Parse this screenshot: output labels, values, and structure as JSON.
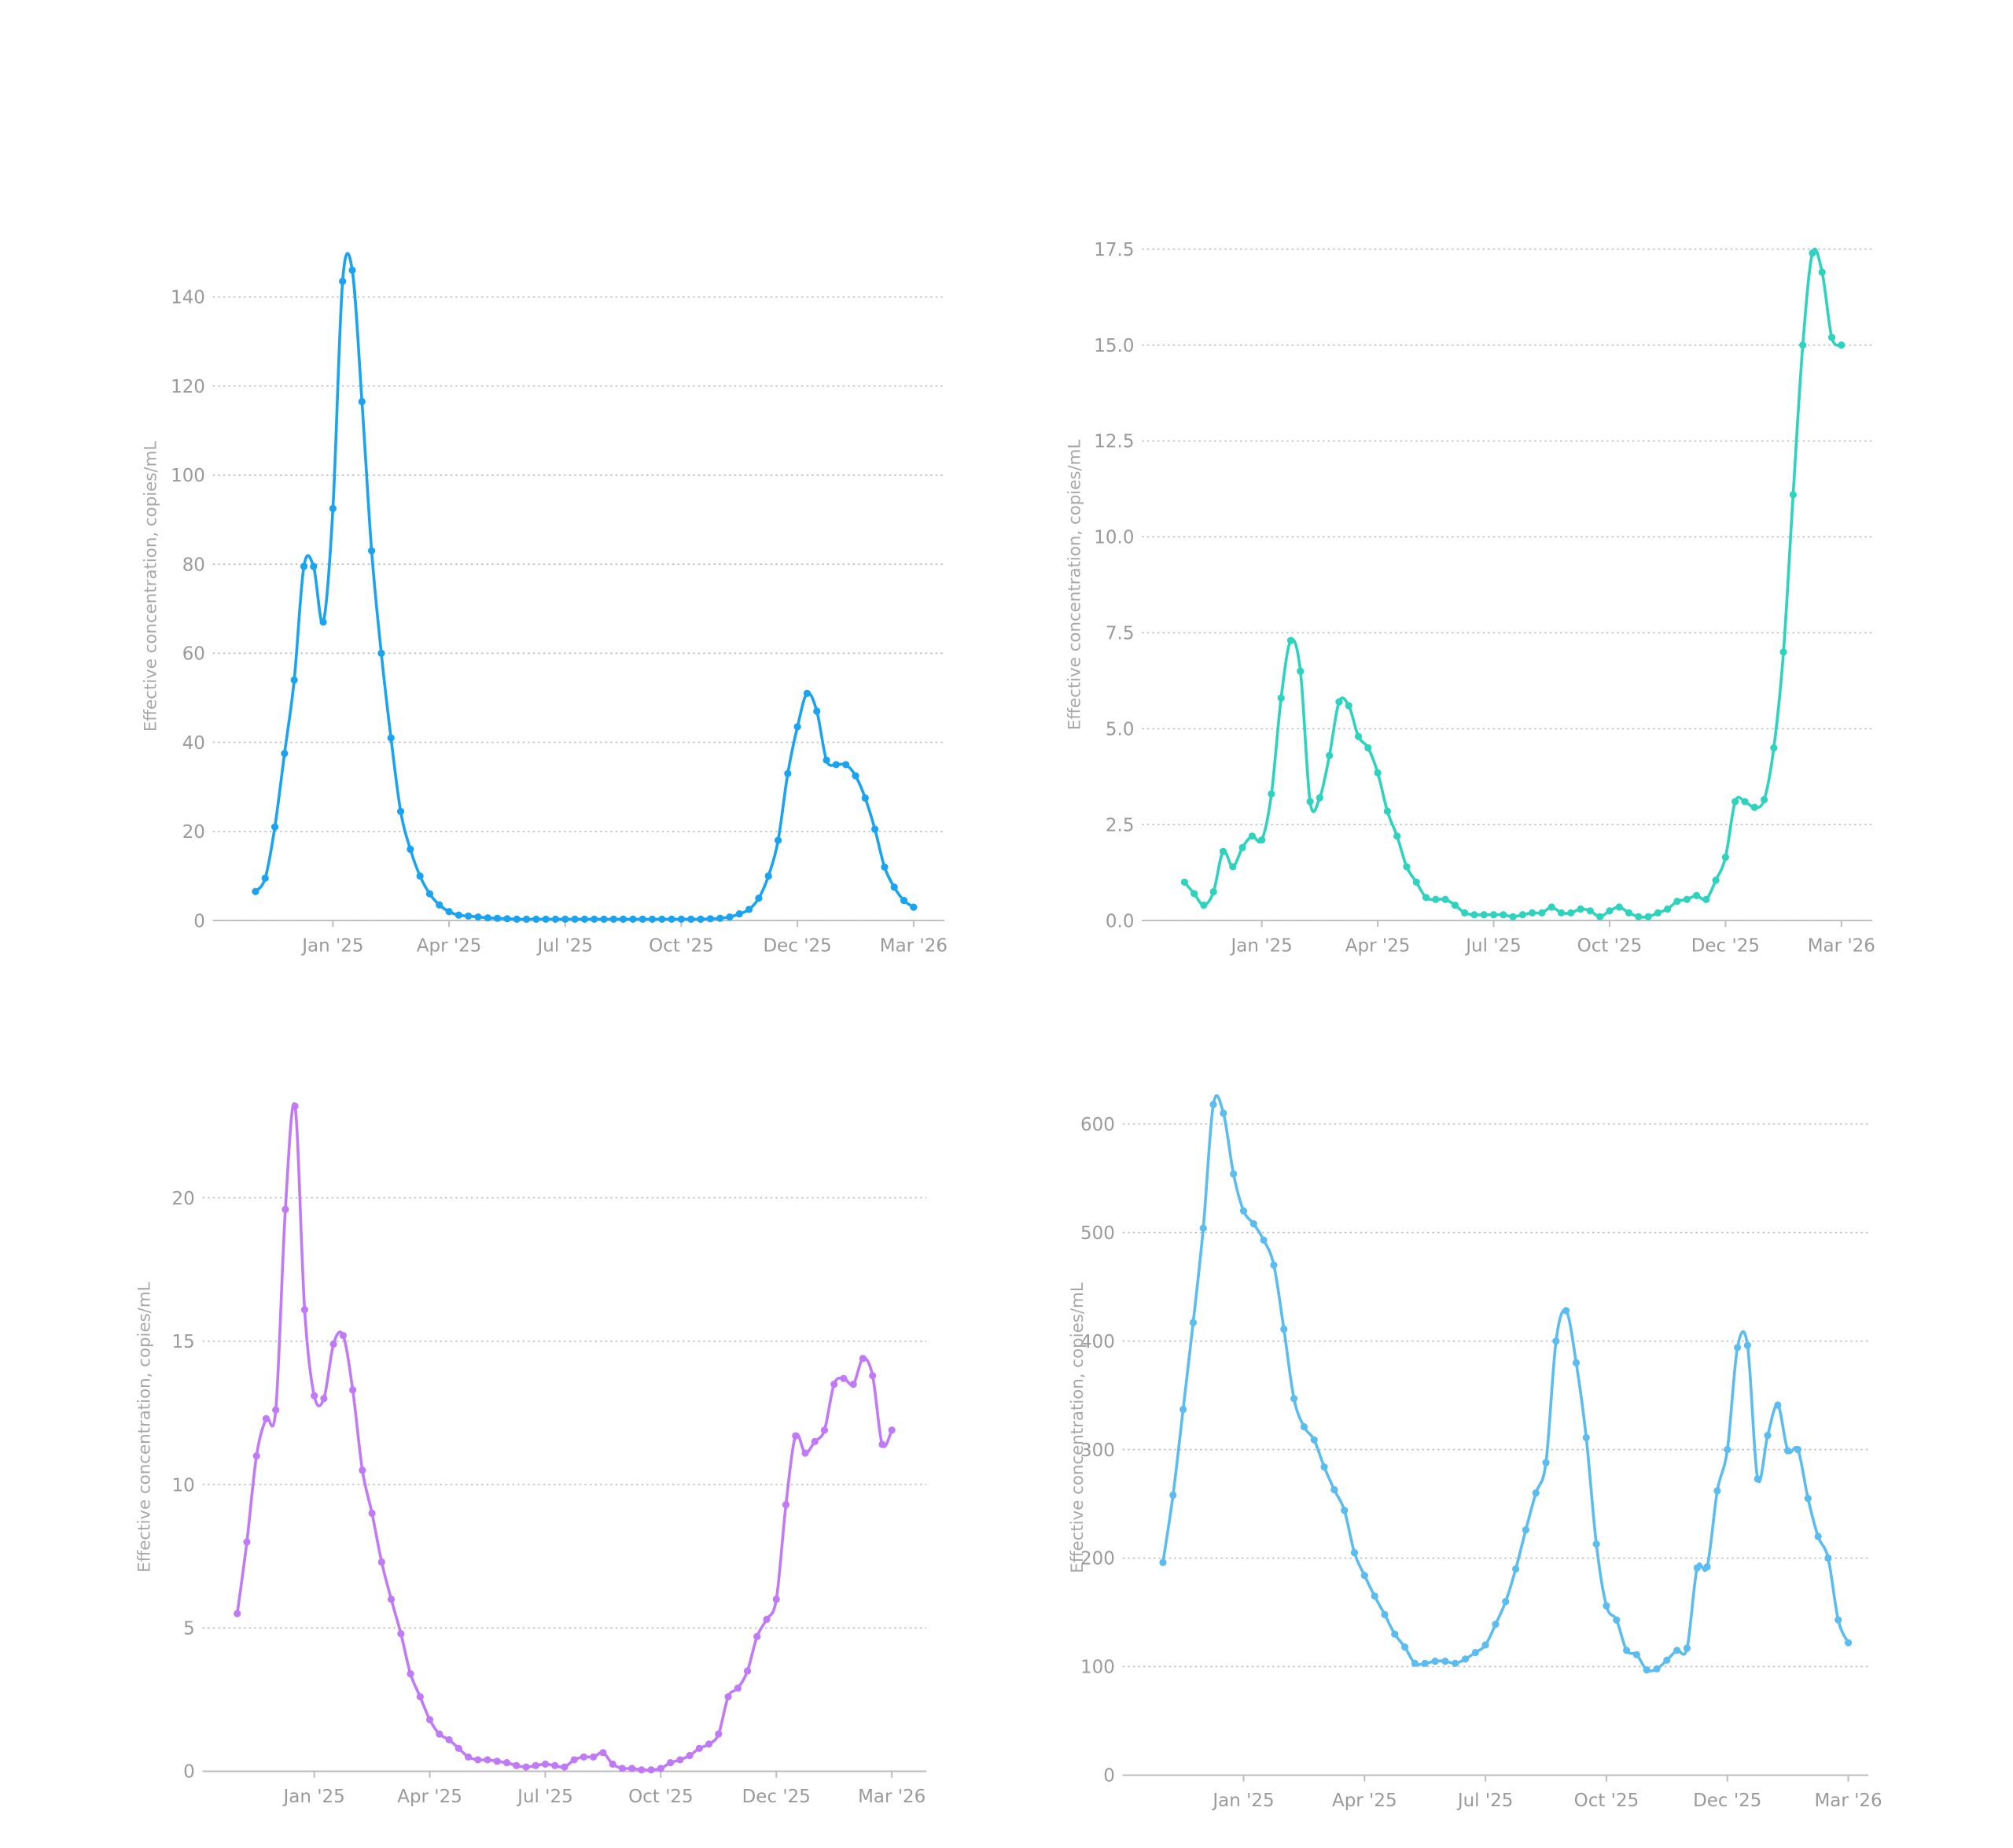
{
  "chart_data": [
    {
      "type": "line",
      "y_label": "Effective concentration, copies/mL",
      "color": "#1aa3f0",
      "x": [
        -2,
        -1.75,
        -1.5,
        -1.25,
        -1,
        -0.75,
        -0.5,
        -0.25,
        0,
        0.25,
        0.5,
        0.75,
        1,
        1.25,
        1.5,
        1.75,
        2,
        2.25,
        2.5,
        2.75,
        3,
        3.25,
        3.5,
        3.75,
        4,
        4.25,
        4.5,
        4.75,
        5,
        5.25,
        5.5,
        5.75,
        6,
        6.25,
        6.5,
        6.75,
        7,
        7.25,
        7.5,
        7.75,
        8,
        8.25,
        8.5,
        8.75,
        9,
        9.25,
        9.5,
        9.75,
        10,
        10.25,
        10.5,
        10.75,
        11,
        11.25,
        11.5,
        11.75,
        12,
        12.25,
        12.5,
        12.75,
        13,
        13.25,
        13.5,
        13.75,
        14,
        14.25,
        14.5,
        14.75,
        15
      ],
      "values": [
        6.5,
        9.5,
        21,
        37.5,
        54,
        79.5,
        79.5,
        67,
        92.5,
        143.5,
        146,
        116.5,
        83,
        60,
        41,
        24.5,
        16,
        10,
        6,
        3.5,
        2,
        1.2,
        1,
        0.8,
        0.6,
        0.5,
        0.4,
        0.3,
        0.3,
        0.3,
        0.3,
        0.3,
        0.3,
        0.3,
        0.3,
        0.3,
        0.3,
        0.3,
        0.3,
        0.3,
        0.3,
        0.3,
        0.3,
        0.3,
        0.3,
        0.3,
        0.3,
        0.4,
        0.5,
        0.8,
        1.5,
        2.5,
        5,
        10,
        18,
        33,
        43.5,
        51,
        47,
        36,
        35,
        35,
        32.5,
        27.5,
        20.5,
        12,
        7.5,
        4.5,
        3
      ],
      "xlim": [
        -3.1,
        15.8
      ],
      "ylim": [
        0,
        150
      ],
      "yticks": [
        0,
        20,
        40,
        60,
        80,
        100,
        120,
        140
      ],
      "xticks": [
        {
          "value": 0,
          "label": "Jan '25"
        },
        {
          "value": 3,
          "label": "Apr '25"
        },
        {
          "value": 6,
          "label": "Jul '25"
        },
        {
          "value": 9,
          "label": "Oct '25"
        },
        {
          "value": 12,
          "label": "Dec '25"
        },
        {
          "value": 15,
          "label": "Mar '26"
        }
      ],
      "grid": true
    },
    {
      "type": "line",
      "y_label": "Effective concentration, copies/mL",
      "color": "#2ed3bd",
      "x": [
        -2,
        -1.75,
        -1.5,
        -1.25,
        -1,
        -0.75,
        -0.5,
        -0.25,
        0,
        0.25,
        0.5,
        0.75,
        1,
        1.25,
        1.5,
        1.75,
        2,
        2.25,
        2.5,
        2.75,
        3,
        3.25,
        3.5,
        3.75,
        4,
        4.25,
        4.5,
        4.75,
        5,
        5.25,
        5.5,
        5.75,
        6,
        6.25,
        6.5,
        6.75,
        7,
        7.25,
        7.5,
        7.75,
        8,
        8.25,
        8.5,
        8.75,
        9,
        9.25,
        9.5,
        9.75,
        10,
        10.25,
        10.5,
        10.75,
        11,
        11.25,
        11.5,
        11.75,
        12,
        12.25,
        12.5,
        12.75,
        13,
        13.25,
        13.5,
        13.75,
        14,
        14.25,
        14.5,
        14.75,
        15
      ],
      "values": [
        1.0,
        0.7,
        0.4,
        0.75,
        1.8,
        1.4,
        1.9,
        2.2,
        2.1,
        3.3,
        5.8,
        7.3,
        6.5,
        3.1,
        3.2,
        4.3,
        5.7,
        5.6,
        4.8,
        4.5,
        3.85,
        2.85,
        2.2,
        1.4,
        1.0,
        0.6,
        0.55,
        0.55,
        0.4,
        0.2,
        0.15,
        0.15,
        0.15,
        0.15,
        0.1,
        0.15,
        0.2,
        0.2,
        0.35,
        0.2,
        0.2,
        0.3,
        0.25,
        0.1,
        0.25,
        0.35,
        0.2,
        0.1,
        0.1,
        0.2,
        0.3,
        0.5,
        0.55,
        0.65,
        0.55,
        1.05,
        1.65,
        3.1,
        3.1,
        2.95,
        3.15,
        4.5,
        7.0,
        11.1,
        15.0,
        17.4,
        16.9,
        15.2,
        15.0
      ],
      "xlim": [
        -3.1,
        15.8
      ],
      "ylim": [
        0,
        17.5
      ],
      "yticks": [
        {
          "value": 0,
          "label": "0.0"
        },
        2.5,
        {
          "value": 5,
          "label": "5.0"
        },
        7.5,
        {
          "value": 10,
          "label": "10.0"
        },
        12.5,
        {
          "value": 15,
          "label": "15.0"
        },
        17.5
      ],
      "xticks": [
        {
          "value": 0,
          "label": "Jan '25"
        },
        {
          "value": 3,
          "label": "Apr '25"
        },
        {
          "value": 6,
          "label": "Jul '25"
        },
        {
          "value": 9,
          "label": "Oct '25"
        },
        {
          "value": 12,
          "label": "Dec '25"
        },
        {
          "value": 15,
          "label": "Mar '26"
        }
      ],
      "grid": true
    },
    {
      "type": "line",
      "y_label": "Effective concentration, copies/mL",
      "color": "#c07af7",
      "x": [
        -2,
        -1.75,
        -1.5,
        -1.25,
        -1,
        -0.75,
        -0.5,
        -0.25,
        0,
        0.25,
        0.5,
        0.75,
        1,
        1.25,
        1.5,
        1.75,
        2,
        2.25,
        2.5,
        2.75,
        3,
        3.25,
        3.5,
        3.75,
        4,
        4.25,
        4.5,
        4.75,
        5,
        5.25,
        5.5,
        5.75,
        6,
        6.25,
        6.5,
        6.75,
        7,
        7.25,
        7.5,
        7.75,
        8,
        8.25,
        8.5,
        8.75,
        9,
        9.25,
        9.5,
        9.75,
        10,
        10.25,
        10.5,
        10.75,
        11,
        11.25,
        11.5,
        11.75,
        12,
        12.25,
        12.5,
        12.75,
        13,
        13.25,
        13.5,
        13.75,
        14,
        14.25,
        14.5,
        14.75,
        15
      ],
      "values": [
        5.5,
        8.0,
        11.0,
        12.3,
        12.6,
        19.6,
        23.2,
        16.1,
        13.1,
        13.0,
        14.9,
        15.2,
        13.3,
        10.5,
        9.0,
        7.3,
        6.0,
        4.8,
        3.4,
        2.6,
        1.8,
        1.3,
        1.1,
        0.8,
        0.5,
        0.4,
        0.4,
        0.35,
        0.3,
        0.2,
        0.15,
        0.2,
        0.25,
        0.2,
        0.15,
        0.4,
        0.5,
        0.5,
        0.65,
        0.25,
        0.1,
        0.1,
        0.05,
        0.05,
        0.1,
        0.3,
        0.4,
        0.55,
        0.8,
        0.95,
        1.3,
        2.6,
        2.9,
        3.5,
        4.7,
        5.3,
        6.0,
        9.3,
        11.7,
        11.1,
        11.5,
        11.9,
        13.5,
        13.7,
        13.5,
        14.4,
        13.8,
        11.4,
        11.9
      ],
      "xlim": [
        -2.9,
        15.9
      ],
      "ylim": [
        0,
        24
      ],
      "yticks": [
        0,
        5,
        10,
        15,
        20
      ],
      "xticks": [
        {
          "value": 0,
          "label": "Jan '25"
        },
        {
          "value": 3,
          "label": "Apr '25"
        },
        {
          "value": 6,
          "label": "Jul '25"
        },
        {
          "value": 9,
          "label": "Oct '25"
        },
        {
          "value": 12,
          "label": "Dec '25"
        },
        {
          "value": 15,
          "label": "Mar '26"
        }
      ],
      "grid": true
    },
    {
      "type": "line",
      "y_label": "Effective concentration, copies/mL",
      "color": "#5bbcf0",
      "x": [
        -2,
        -1.75,
        -1.5,
        -1.25,
        -1,
        -0.75,
        -0.5,
        -0.25,
        0,
        0.25,
        0.5,
        0.75,
        1,
        1.25,
        1.5,
        1.75,
        2,
        2.25,
        2.5,
        2.75,
        3,
        3.25,
        3.5,
        3.75,
        4,
        4.25,
        4.5,
        4.75,
        5,
        5.25,
        5.5,
        5.75,
        6,
        6.25,
        6.5,
        6.75,
        7,
        7.25,
        7.5,
        7.75,
        8,
        8.25,
        8.5,
        8.75,
        9,
        9.25,
        9.5,
        9.75,
        10,
        10.25,
        10.5,
        10.75,
        11,
        11.25,
        11.5,
        11.75,
        12,
        12.25,
        12.5,
        12.75,
        13,
        13.25,
        13.5,
        13.75,
        14,
        14.25,
        14.5,
        14.75,
        15
      ],
      "values": [
        196,
        258,
        337,
        417,
        504,
        618,
        610,
        554,
        520,
        508,
        493,
        470,
        411,
        347,
        321,
        309,
        284,
        263,
        244,
        205,
        184,
        165,
        148,
        130,
        118,
        103,
        103,
        105,
        105,
        103,
        107,
        113,
        120,
        139,
        160,
        190,
        226,
        260,
        288,
        400,
        428,
        380,
        311,
        213,
        156,
        143,
        115,
        111,
        97,
        98,
        106,
        115,
        117,
        191,
        192,
        262,
        300,
        394,
        396,
        273,
        313,
        341,
        299,
        300,
        255,
        220,
        200,
        143,
        122
      ],
      "xlim": [
        -3,
        15.5
      ],
      "ylim": [
        0,
        640
      ],
      "yticks": [
        0,
        100,
        200,
        300,
        400,
        500,
        600
      ],
      "xticks": [
        {
          "value": 0,
          "label": "Jan '25"
        },
        {
          "value": 3,
          "label": "Apr '25"
        },
        {
          "value": 6,
          "label": "Jul '25"
        },
        {
          "value": 9,
          "label": "Oct '25"
        },
        {
          "value": 12,
          "label": "Dec '25"
        },
        {
          "value": 15,
          "label": "Mar '26"
        }
      ],
      "grid": true
    }
  ]
}
